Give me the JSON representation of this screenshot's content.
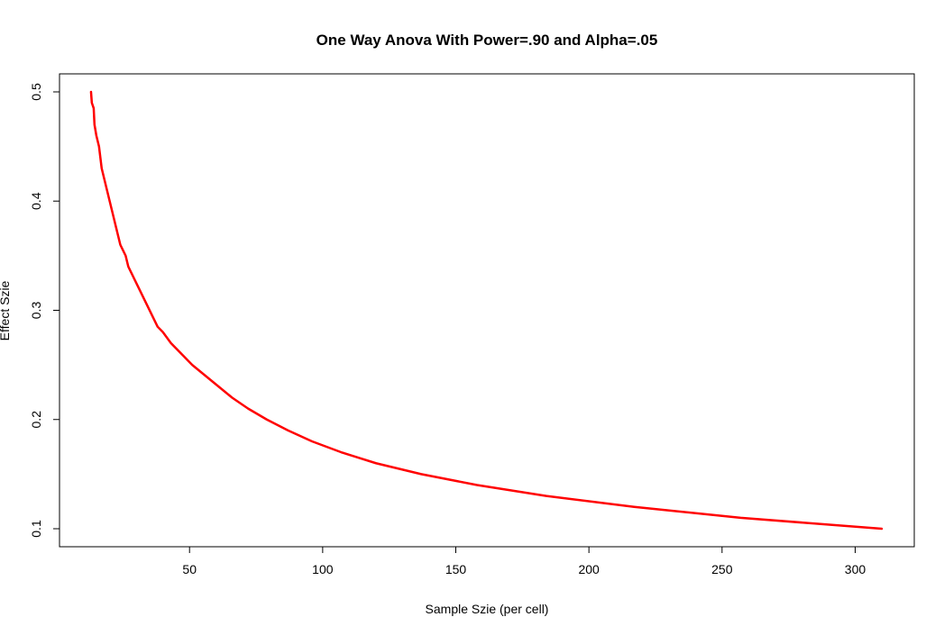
{
  "chart_data": {
    "type": "line",
    "title": "One Way Anova With Power=.90 and Alpha=.05",
    "xlabel": "Sample Szie (per cell)",
    "ylabel": "Effect Szie",
    "xlim": [
      12,
      310
    ],
    "ylim": [
      0.1,
      0.5
    ],
    "xticks": [
      50,
      100,
      150,
      200,
      250,
      300
    ],
    "xtick_labels": [
      "50",
      "100",
      "150",
      "200",
      "250",
      "300"
    ],
    "yticks": [
      0.1,
      0.2,
      0.3,
      0.4,
      0.5
    ],
    "ytick_labels": [
      "0.1",
      "0.2",
      "0.3",
      "0.4",
      "0.5"
    ],
    "grid": false,
    "series": [
      {
        "color": "#ff0000",
        "x": [
          13,
          13.3,
          14,
          14.3,
          15,
          16,
          16.5,
          17,
          18,
          19,
          20,
          21,
          22,
          23,
          24,
          25,
          26,
          27,
          28,
          29,
          30,
          32,
          34,
          36,
          38,
          40,
          43,
          47,
          51,
          56,
          61,
          66,
          72,
          79,
          87,
          96,
          107,
          120,
          137,
          158,
          184,
          217,
          257,
          310
        ],
        "y": [
          0.5,
          0.49,
          0.485,
          0.47,
          0.46,
          0.45,
          0.44,
          0.43,
          0.42,
          0.41,
          0.4,
          0.39,
          0.38,
          0.37,
          0.36,
          0.355,
          0.35,
          0.34,
          0.335,
          0.33,
          0.325,
          0.315,
          0.305,
          0.295,
          0.285,
          0.28,
          0.27,
          0.26,
          0.25,
          0.24,
          0.23,
          0.22,
          0.21,
          0.2,
          0.19,
          0.18,
          0.17,
          0.16,
          0.15,
          0.14,
          0.13,
          0.12,
          0.11,
          0.1
        ]
      }
    ]
  }
}
